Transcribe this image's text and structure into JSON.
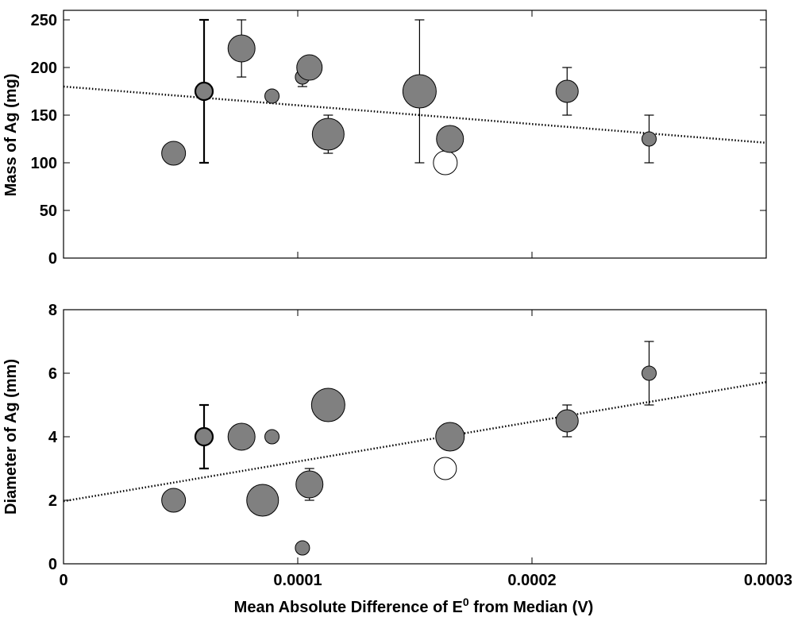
{
  "chart_data": [
    {
      "type": "scatter",
      "title": "",
      "xlabel": "",
      "ylabel": "Mass of Ag (mg)",
      "xlim": [
        0,
        0.0003
      ],
      "ylim": [
        0,
        260
      ],
      "x_ticks": [
        0,
        0.0001,
        0.0002,
        0.0003
      ],
      "y_ticks": [
        0,
        50,
        100,
        150,
        200,
        250
      ],
      "y_tick_labels": [
        "0",
        "50",
        "100",
        "150",
        "200",
        "250"
      ],
      "points": [
        {
          "x": 4.7e-05,
          "y": 110,
          "r": 15,
          "fill": "#808080",
          "err": null
        },
        {
          "x": 6e-05,
          "y": 175,
          "r": 11,
          "fill": "#808080",
          "err": [
            100,
            250
          ],
          "bold": true
        },
        {
          "x": 7.6e-05,
          "y": 220,
          "r": 17,
          "fill": "#808080",
          "err": [
            190,
            250
          ]
        },
        {
          "x": 8.9e-05,
          "y": 170,
          "r": 9,
          "fill": "#808080",
          "err": null
        },
        {
          "x": 0.000102,
          "y": 190,
          "r": 9,
          "fill": "#808080",
          "err": [
            180,
            200
          ]
        },
        {
          "x": 0.000105,
          "y": 200,
          "r": 16,
          "fill": "#808080",
          "err": null
        },
        {
          "x": 0.000113,
          "y": 130,
          "r": 20,
          "fill": "#808080",
          "err": [
            110,
            150
          ]
        },
        {
          "x": 0.000152,
          "y": 175,
          "r": 21,
          "fill": "#808080",
          "err": [
            100,
            250
          ]
        },
        {
          "x": 0.000163,
          "y": 100,
          "r": 15,
          "fill": "#ffffff",
          "err": null
        },
        {
          "x": 0.000165,
          "y": 125,
          "r": 17,
          "fill": "#808080",
          "err": null
        },
        {
          "x": 0.000215,
          "y": 175,
          "r": 14,
          "fill": "#808080",
          "err": [
            150,
            200
          ]
        },
        {
          "x": 0.00025,
          "y": 125,
          "r": 9,
          "fill": "#808080",
          "err": [
            100,
            150
          ]
        }
      ],
      "trendline": {
        "x": [
          0,
          0.0003
        ],
        "y": [
          180,
          121
        ]
      }
    },
    {
      "type": "scatter",
      "title": "",
      "xlabel": "Mean Absolute Difference of E0 from Median (V)",
      "ylabel": "Diameter of Ag (mm)",
      "xlim": [
        0,
        0.0003
      ],
      "ylim": [
        0,
        8
      ],
      "x_ticks": [
        0,
        0.0001,
        0.0002,
        0.0003
      ],
      "x_tick_labels": [
        "0",
        "0.0001",
        "0.0002",
        "0.0003"
      ],
      "y_ticks": [
        0,
        2,
        4,
        6,
        8
      ],
      "y_tick_labels": [
        "0",
        "2",
        "4",
        "6",
        "8"
      ],
      "points": [
        {
          "x": 4.7e-05,
          "y": 2,
          "r": 15,
          "fill": "#808080",
          "err": null
        },
        {
          "x": 6e-05,
          "y": 4,
          "r": 11,
          "fill": "#808080",
          "err": [
            3,
            5
          ],
          "bold": true
        },
        {
          "x": 7.6e-05,
          "y": 4,
          "r": 17,
          "fill": "#808080",
          "err": null
        },
        {
          "x": 8.5e-05,
          "y": 2,
          "r": 20,
          "fill": "#808080",
          "err": null
        },
        {
          "x": 8.9e-05,
          "y": 4,
          "r": 9,
          "fill": "#808080",
          "err": null
        },
        {
          "x": 0.000102,
          "y": 0.5,
          "r": 9,
          "fill": "#808080",
          "err": null
        },
        {
          "x": 0.000105,
          "y": 2.5,
          "r": 17,
          "fill": "#808080",
          "err": [
            2,
            3
          ]
        },
        {
          "x": 0.000113,
          "y": 5,
          "r": 21,
          "fill": "#808080",
          "err": null
        },
        {
          "x": 0.000163,
          "y": 3,
          "r": 14,
          "fill": "#ffffff",
          "err": null
        },
        {
          "x": 0.000165,
          "y": 4,
          "r": 18,
          "fill": "#808080",
          "err": null
        },
        {
          "x": 0.000215,
          "y": 4.5,
          "r": 14,
          "fill": "#808080",
          "err": [
            4,
            5
          ]
        },
        {
          "x": 0.00025,
          "y": 6,
          "r": 9,
          "fill": "#808080",
          "err": [
            5,
            7
          ]
        }
      ],
      "trendline": {
        "x": [
          0,
          0.0003
        ],
        "y": [
          1.97,
          5.72
        ]
      }
    }
  ],
  "labels": {
    "ylabel_top": "Mass of Ag (mg)",
    "ylabel_bottom": "Diameter of Ag (mm)",
    "xlabel_prefix": "Mean Absolute Difference of E",
    "xlabel_sup": "0",
    "xlabel_suffix": " from Median (V)"
  },
  "colors": {
    "marker_fill": "#808080",
    "marker_open": "#ffffff",
    "stroke": "#000000"
  }
}
